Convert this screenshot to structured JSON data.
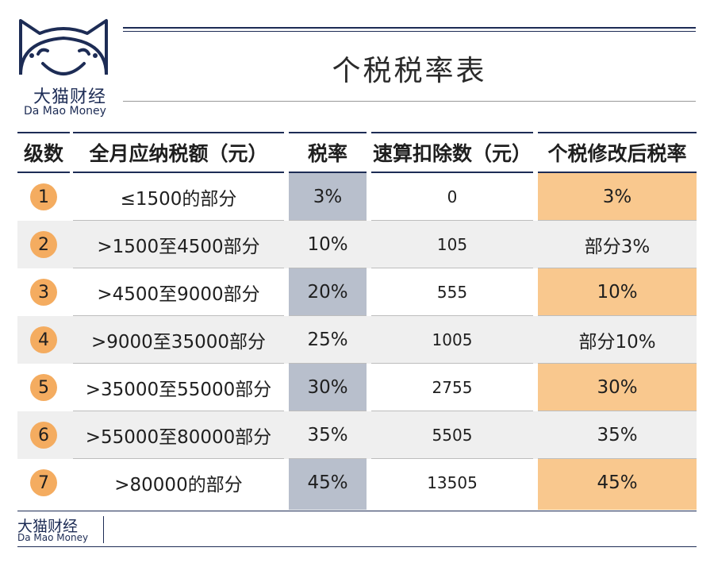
{
  "logo": {
    "name_cn": "大猫财经",
    "name_en": "Da Mao Money"
  },
  "title": "个税税率表",
  "table": {
    "headers": [
      "级数",
      "全月应纳税额（元）",
      "税率",
      "速算扣除数（元）",
      "个税修改后税率"
    ],
    "rows": [
      {
        "level": "1",
        "amount": "≤1500的部分",
        "rate": "3%",
        "deduction": "0",
        "new_rate": "3%"
      },
      {
        "level": "2",
        "amount": ">1500至4500部分",
        "rate": "10%",
        "deduction": "105",
        "new_rate": "部分3%"
      },
      {
        "level": "3",
        "amount": ">4500至9000部分",
        "rate": "20%",
        "deduction": "555",
        "new_rate": "10%"
      },
      {
        "level": "4",
        "amount": ">9000至35000部分",
        "rate": "25%",
        "deduction": "1005",
        "new_rate": "部分10%"
      },
      {
        "level": "5",
        "amount": ">35000至55000部分",
        "rate": "30%",
        "deduction": "2755",
        "new_rate": "30%"
      },
      {
        "level": "6",
        "amount": ">55000至80000部分",
        "rate": "35%",
        "deduction": "5505",
        "new_rate": "35%"
      },
      {
        "level": "7",
        "amount": ">80000的部分",
        "rate": "45%",
        "deduction": "13505",
        "new_rate": "45%"
      }
    ]
  },
  "footer": {
    "name_cn": "大猫财经",
    "name_en": "Da Mao Money"
  },
  "colors": {
    "navy": "#1d2c55",
    "rate_column": "#b8bfcc",
    "new_rate_column": "#f9c88e",
    "badge": "#f4ac60",
    "stripe": "#efefef"
  }
}
